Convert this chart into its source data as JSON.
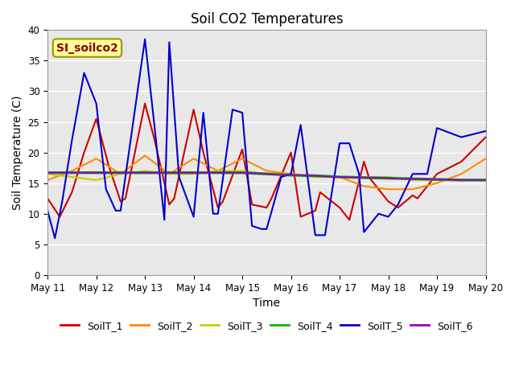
{
  "title": "Soil CO2 Temperatures",
  "xlabel": "Time",
  "ylabel": "Soil Temperature (C)",
  "ylim": [
    0,
    40
  ],
  "xlim": [
    0,
    9
  ],
  "xtick_labels": [
    "May 11",
    "May 12",
    "May 13",
    "May 14",
    "May 15",
    "May 16",
    "May 17",
    "May 18",
    "May 19",
    "May 20"
  ],
  "ytick_vals": [
    0,
    5,
    10,
    15,
    20,
    25,
    30,
    35,
    40
  ],
  "annotation_text": "SI_soilco2",
  "annotation_color": "#8B0000",
  "annotation_bg": "#FFFF99",
  "annotation_border": "#999900",
  "background_color": "#E8E8E8",
  "fig_bg": "#FFFFFF",
  "series": {
    "SoilT_1": {
      "color": "#CC0000",
      "lw": 1.5,
      "x": [
        0,
        0.25,
        0.5,
        0.75,
        1.0,
        1.25,
        1.5,
        1.6,
        2.0,
        2.2,
        2.5,
        2.6,
        3.0,
        3.2,
        3.5,
        3.6,
        4.0,
        4.2,
        4.5,
        4.6,
        5.0,
        5.2,
        5.5,
        5.6,
        6.0,
        6.2,
        6.5,
        6.6,
        7.0,
        7.2,
        7.5,
        7.6,
        8.0,
        8.5,
        9.0
      ],
      "y": [
        12.5,
        9.5,
        13.5,
        20.0,
        25.5,
        18.0,
        12.0,
        12.5,
        28.0,
        22.0,
        11.5,
        12.5,
        27.0,
        20.0,
        11.0,
        12.0,
        20.5,
        11.5,
        11.0,
        12.5,
        20.0,
        9.5,
        10.5,
        13.5,
        11.0,
        9.0,
        18.5,
        16.0,
        12.0,
        11.0,
        13.0,
        12.5,
        16.5,
        18.5,
        22.5
      ]
    },
    "SoilT_2": {
      "color": "#FF8C00",
      "lw": 1.5,
      "x": [
        0,
        0.5,
        1.0,
        1.5,
        2.0,
        2.5,
        3.0,
        3.5,
        4.0,
        4.5,
        5.0,
        5.5,
        6.0,
        6.5,
        7.0,
        7.5,
        8.0,
        8.5,
        9.0
      ],
      "y": [
        15.5,
        17.0,
        19.0,
        16.5,
        19.5,
        16.5,
        19.0,
        17.0,
        19.0,
        17.0,
        16.5,
        16.0,
        16.0,
        14.5,
        14.0,
        14.0,
        15.0,
        16.5,
        19.0
      ]
    },
    "SoilT_3": {
      "color": "#CCCC00",
      "lw": 1.5,
      "x": [
        0,
        0.5,
        1.0,
        1.5,
        2.0,
        2.5,
        3.0,
        3.5,
        4.0,
        4.5,
        5.0,
        5.5,
        6.0,
        6.5,
        7.0,
        7.5,
        8.0,
        8.5,
        9.0
      ],
      "y": [
        16.5,
        16.0,
        15.5,
        16.5,
        17.0,
        16.5,
        16.5,
        17.0,
        17.0,
        16.5,
        16.5,
        16.0,
        16.0,
        16.0,
        16.0,
        15.5,
        15.5,
        15.5,
        15.5
      ]
    },
    "SoilT_4": {
      "color": "#00BB00",
      "lw": 2.5,
      "x": [
        0,
        1.0,
        2.0,
        3.0,
        4.0,
        5.0,
        5.5,
        6.0,
        6.5,
        7.0,
        7.5,
        8.0,
        8.5,
        9.0
      ],
      "y": [
        16.7,
        16.7,
        16.7,
        16.7,
        16.7,
        16.3,
        16.2,
        16.0,
        15.9,
        15.8,
        15.7,
        15.6,
        15.5,
        15.5
      ]
    },
    "SoilT_5": {
      "color": "#0000CC",
      "lw": 1.5,
      "x": [
        0,
        0.15,
        0.3,
        0.5,
        0.75,
        1.0,
        1.2,
        1.4,
        1.5,
        2.0,
        2.2,
        2.4,
        2.5,
        2.7,
        3.0,
        3.2,
        3.4,
        3.5,
        3.8,
        4.0,
        4.2,
        4.4,
        4.5,
        4.8,
        5.0,
        5.2,
        5.5,
        5.7,
        6.0,
        6.2,
        6.4,
        6.5,
        6.8,
        7.0,
        7.2,
        7.5,
        7.8,
        8.0,
        8.5,
        9.0
      ],
      "y": [
        10.5,
        6.0,
        12.0,
        22.0,
        33.0,
        28.0,
        14.0,
        10.5,
        10.5,
        38.5,
        24.0,
        9.0,
        38.0,
        16.0,
        9.5,
        26.5,
        10.0,
        10.0,
        27.0,
        26.5,
        8.0,
        7.5,
        7.5,
        16.0,
        16.5,
        24.5,
        6.5,
        6.5,
        21.5,
        21.5,
        16.5,
        7.0,
        10.0,
        9.5,
        11.5,
        16.5,
        16.5,
        24.0,
        22.5,
        23.5
      ]
    },
    "SoilT_6": {
      "color": "#9900BB",
      "lw": 1.5,
      "x": [
        0,
        1.0,
        2.0,
        3.0,
        4.0,
        4.5,
        5.0,
        5.5,
        6.0,
        6.5,
        7.0,
        7.5,
        8.0,
        8.5,
        9.0
      ],
      "y": [
        16.7,
        16.7,
        16.7,
        16.7,
        16.7,
        16.5,
        16.3,
        16.2,
        16.0,
        15.9,
        15.8,
        15.7,
        15.6,
        15.5,
        15.5
      ]
    }
  },
  "legend_entries": [
    "SoilT_1",
    "SoilT_2",
    "SoilT_3",
    "SoilT_4",
    "SoilT_5",
    "SoilT_6"
  ]
}
